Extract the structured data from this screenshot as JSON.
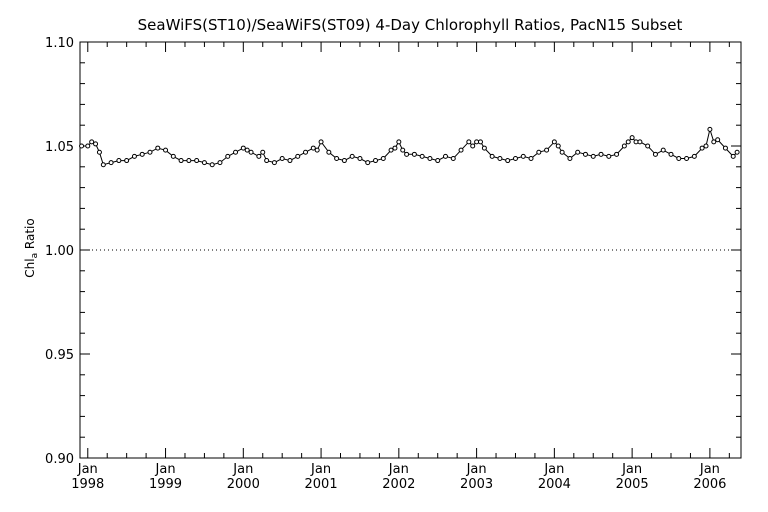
{
  "chart_data": {
    "type": "line",
    "title": "SeaWiFS(ST10)/SeaWiFS(ST09) 4-Day Chlorophyll Ratios, PacN15 Subset",
    "ylabel_main": "Chl",
    "ylabel_sub": "a",
    "ylabel_tail": " Ratio",
    "ylim": [
      0.9,
      1.1
    ],
    "yticks": [
      {
        "value": 0.9,
        "label": "0.90"
      },
      {
        "value": 0.95,
        "label": "0.95"
      },
      {
        "value": 1.0,
        "label": "1.00"
      },
      {
        "value": 1.05,
        "label": "1.05"
      },
      {
        "value": 1.1,
        "label": "1.10"
      }
    ],
    "xlim": [
      1997.9,
      2006.4
    ],
    "xticks": [
      {
        "value": 1998,
        "month": "Jan",
        "year": "1998"
      },
      {
        "value": 1999,
        "month": "Jan",
        "year": "1999"
      },
      {
        "value": 2000,
        "month": "Jan",
        "year": "2000"
      },
      {
        "value": 2001,
        "month": "Jan",
        "year": "2001"
      },
      {
        "value": 2002,
        "month": "Jan",
        "year": "2002"
      },
      {
        "value": 2003,
        "month": "Jan",
        "year": "2003"
      },
      {
        "value": 2004,
        "month": "Jan",
        "year": "2004"
      },
      {
        "value": 2005,
        "month": "Jan",
        "year": "2005"
      },
      {
        "value": 2006,
        "month": "Jan",
        "year": "2006"
      }
    ],
    "reference_line": 1.0,
    "x": [
      1997.92,
      1998.0,
      1998.05,
      1998.1,
      1998.15,
      1998.2,
      1998.3,
      1998.4,
      1998.5,
      1998.6,
      1998.7,
      1998.8,
      1998.9,
      1999.0,
      1999.1,
      1999.2,
      1999.3,
      1999.4,
      1999.5,
      1999.6,
      1999.7,
      1999.8,
      1999.9,
      2000.0,
      2000.05,
      2000.1,
      2000.2,
      2000.25,
      2000.3,
      2000.4,
      2000.5,
      2000.6,
      2000.7,
      2000.8,
      2000.9,
      2000.95,
      2001.0,
      2001.1,
      2001.2,
      2001.3,
      2001.4,
      2001.5,
      2001.6,
      2001.7,
      2001.8,
      2001.9,
      2001.95,
      2002.0,
      2002.05,
      2002.1,
      2002.2,
      2002.3,
      2002.4,
      2002.5,
      2002.6,
      2002.7,
      2002.8,
      2002.9,
      2002.95,
      2003.0,
      2003.05,
      2003.1,
      2003.2,
      2003.3,
      2003.4,
      2003.5,
      2003.6,
      2003.7,
      2003.8,
      2003.9,
      2004.0,
      2004.05,
      2004.1,
      2004.2,
      2004.3,
      2004.4,
      2004.5,
      2004.6,
      2004.7,
      2004.8,
      2004.9,
      2004.95,
      2005.0,
      2005.05,
      2005.1,
      2005.2,
      2005.3,
      2005.4,
      2005.5,
      2005.6,
      2005.7,
      2005.8,
      2005.9,
      2005.95,
      2006.0,
      2006.05,
      2006.1,
      2006.2,
      2006.3,
      2006.35
    ],
    "y": [
      1.05,
      1.05,
      1.052,
      1.051,
      1.047,
      1.041,
      1.042,
      1.043,
      1.043,
      1.045,
      1.046,
      1.047,
      1.049,
      1.048,
      1.045,
      1.043,
      1.043,
      1.043,
      1.042,
      1.041,
      1.042,
      1.045,
      1.047,
      1.049,
      1.048,
      1.047,
      1.045,
      1.047,
      1.043,
      1.042,
      1.044,
      1.043,
      1.045,
      1.047,
      1.049,
      1.048,
      1.052,
      1.047,
      1.044,
      1.043,
      1.045,
      1.044,
      1.042,
      1.043,
      1.044,
      1.048,
      1.049,
      1.052,
      1.048,
      1.046,
      1.046,
      1.045,
      1.044,
      1.043,
      1.045,
      1.044,
      1.048,
      1.052,
      1.05,
      1.052,
      1.052,
      1.049,
      1.045,
      1.044,
      1.043,
      1.044,
      1.045,
      1.044,
      1.047,
      1.048,
      1.052,
      1.05,
      1.047,
      1.044,
      1.047,
      1.046,
      1.045,
      1.046,
      1.045,
      1.046,
      1.05,
      1.052,
      1.054,
      1.052,
      1.052,
      1.05,
      1.046,
      1.048,
      1.046,
      1.044,
      1.044,
      1.045,
      1.049,
      1.05,
      1.058,
      1.052,
      1.053,
      1.049,
      1.045,
      1.047
    ],
    "grid": false,
    "legend": "none"
  }
}
